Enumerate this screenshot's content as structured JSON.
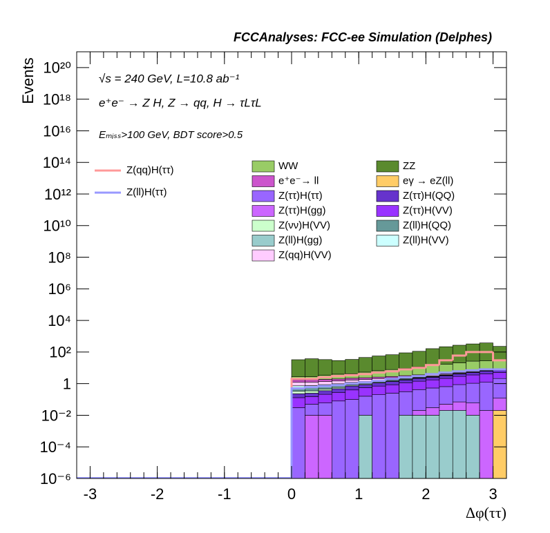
{
  "chart_data": {
    "type": "stacked_histogram",
    "title": "FCCAnalyses: FCC-ee Simulation (Delphes)",
    "annotations": [
      "√s = 240 GeV, L=10.8 ab⁻¹",
      "e⁺e⁻ → Z H, Z → qq, H → τLτL",
      "Eₘᵢₛₛ>100 GeV, BDT score>0.5"
    ],
    "xlabel": "Δφ(ττ)",
    "ylabel": "Events",
    "log_y": true,
    "xlim": [
      -3.2,
      3.2
    ],
    "ylim": [
      1e-06,
      1e+21
    ],
    "xticks": [
      -3,
      -2,
      -1,
      0,
      1,
      2,
      3
    ],
    "yticks": [
      {
        "value": 1e-06,
        "label": "10⁻⁶"
      },
      {
        "value": 0.0001,
        "label": "10⁻⁴"
      },
      {
        "value": 0.01,
        "label": "10⁻²"
      },
      1,
      {
        "value": 100,
        "label": "10²"
      },
      {
        "value": 10000,
        "label": "10⁴"
      },
      {
        "value": 1000000.0,
        "label": "10⁶"
      },
      {
        "value": 100000000.0,
        "label": "10⁸"
      },
      {
        "value": 10000000000.0,
        "label": "10¹⁰"
      },
      {
        "value": 1000000000000.0,
        "label": "10¹²"
      },
      {
        "value": 100000000000000.0,
        "label": "10¹⁴"
      },
      {
        "value": 1e+16,
        "label": "10¹⁶"
      },
      {
        "value": 1e+18,
        "label": "10¹⁸"
      },
      {
        "value": 1e+20,
        "label": "10²⁰"
      }
    ],
    "bins": [
      0,
      0.2,
      0.4,
      0.6,
      0.8,
      1.0,
      1.2,
      1.4,
      1.6,
      1.8,
      2.0,
      2.2,
      2.4,
      2.6,
      2.8,
      3.0,
      3.2
    ],
    "series": [
      {
        "name": "eγ → eZ(ll)",
        "color": "#ffcc66",
        "values": [
          0,
          0,
          0,
          0,
          0,
          0,
          0,
          0,
          0,
          0,
          0,
          0,
          0,
          0,
          0,
          0.02
        ]
      },
      {
        "name": "Z(ll)H(gg)",
        "color": "#99cccc",
        "values": [
          0,
          0,
          0,
          0,
          0,
          0.01,
          0,
          0,
          0.01,
          0.01,
          0.01,
          0.02,
          0.02,
          0.01,
          0,
          0
        ]
      },
      {
        "name": "Z(ττ)H(gg)",
        "color": "#cc66ff",
        "values": [
          0,
          0.01,
          0.01,
          0,
          0,
          0,
          0,
          0,
          0,
          0.01,
          0.02,
          0.03,
          0.05,
          0.05,
          0.02,
          0.1
        ]
      },
      {
        "name": "Z(ττ)H(ττ)",
        "color": "#9966ff",
        "values": [
          0.03,
          0.04,
          0.05,
          0.08,
          0.1,
          0.15,
          0.2,
          0.25,
          0.3,
          0.4,
          0.5,
          0.6,
          0.8,
          1,
          1.2,
          2
        ]
      },
      {
        "name": "Z(ττ)H(VV)",
        "color": "#9933ff",
        "values": [
          0.1,
          0.1,
          0.15,
          0.2,
          0.3,
          0.4,
          0.5,
          0.6,
          0.8,
          1,
          1.2,
          1.5,
          2,
          2.5,
          3,
          3
        ]
      },
      {
        "name": "Z(ττ)H(QQ)",
        "color": "#6633cc",
        "values": [
          0.1,
          0.1,
          0.15,
          0.2,
          0.3,
          0.3,
          0.4,
          0.5,
          0.6,
          0.7,
          0.8,
          1,
          1.2,
          1.5,
          2,
          2
        ]
      },
      {
        "name": "Z(νν)H(VV)",
        "color": "#ccffcc",
        "values": [
          0.1,
          0.1,
          0.1,
          0.1,
          0.1,
          0.1,
          0.1,
          0.1,
          0.1,
          0.1,
          0.1,
          0.1,
          0.1,
          0.1,
          0.1,
          0.1
        ]
      },
      {
        "name": "Z(ll)H(QQ)",
        "color": "#669999",
        "values": [
          0.2,
          0.2,
          0.2,
          0.2,
          0.2,
          0.2,
          0.2,
          0.2,
          0.2,
          0.2,
          0.2,
          0.2,
          0.2,
          0.2,
          0.2,
          0.2
        ]
      },
      {
        "name": "Z(ll)H(VV)",
        "color": "#ccffff",
        "values": [
          0.2,
          0.2,
          0.2,
          0.2,
          0.2,
          0.2,
          0.2,
          0.2,
          0.2,
          0.2,
          0.2,
          0.2,
          0.2,
          0.2,
          0.2,
          0.2
        ]
      },
      {
        "name": "Z(qq)H(VV)",
        "color": "#ffccff",
        "values": [
          0.5,
          0.5,
          0.5,
          0.5,
          0.5,
          0.5,
          0.5,
          0.5,
          0.5,
          0.5,
          0.5,
          0.5,
          0.5,
          0.5,
          0.5,
          0.5
        ]
      },
      {
        "name": "e⁺e⁻→ ll",
        "color": "#cc55cc",
        "values": [
          0.5,
          0.5,
          0.5,
          0.5,
          0.5,
          0.5,
          0.5,
          0.5,
          0.5,
          0.5,
          0.5,
          0.5,
          0.5,
          0.5,
          0.5,
          0.5
        ]
      },
      {
        "name": "WW",
        "color": "#99cc66",
        "values": [
          1,
          1,
          1.5,
          2,
          2,
          3,
          4,
          5,
          6,
          8,
          10,
          12,
          15,
          20,
          20,
          20
        ]
      },
      {
        "name": "ZZ",
        "color": "#5a8a2e",
        "values": [
          30,
          35,
          30,
          25,
          30,
          40,
          50,
          60,
          80,
          100,
          150,
          200,
          250,
          300,
          350,
          200
        ]
      }
    ],
    "lines": [
      {
        "name": "Z(qq)H(ττ)",
        "color": "#ff9999",
        "values": [
          2,
          2,
          2.5,
          3,
          3.5,
          4,
          5,
          6,
          8,
          10,
          15,
          30,
          60,
          100,
          100,
          30
        ]
      },
      {
        "name": "Z(ll)H(ττ)",
        "color": "#9999ff",
        "values": [
          0.5,
          0.6,
          0.7,
          0.8,
          1,
          1.2,
          1.5,
          2,
          2.5,
          3,
          4,
          5,
          6,
          7,
          8,
          8
        ]
      }
    ]
  }
}
